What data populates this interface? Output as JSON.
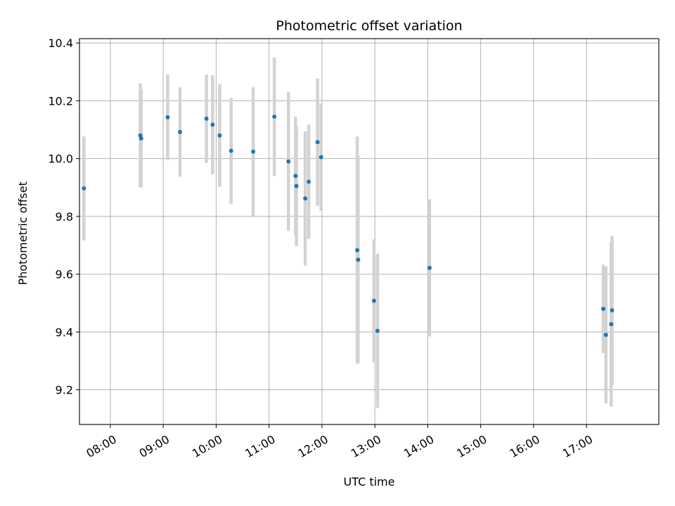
{
  "chart_data": {
    "type": "scatter",
    "title": "Photometric offset variation",
    "xlabel": "UTC time",
    "ylabel": "Photometric offset",
    "grid": true,
    "xlim": [
      "07:25",
      "18:22"
    ],
    "ylim": [
      9.08,
      10.415
    ],
    "x_ticks": [
      "08:00",
      "09:00",
      "10:00",
      "11:00",
      "12:00",
      "13:00",
      "14:00",
      "15:00",
      "16:00",
      "17:00"
    ],
    "y_ticks": [
      9.2,
      9.4,
      9.6,
      9.8,
      10.0,
      10.2,
      10.4
    ],
    "y_tick_labels": [
      "9.2",
      "9.4",
      "9.6",
      "9.8",
      "10.0",
      "10.2",
      "10.4"
    ],
    "marker_color": "#1f77b4",
    "errorbar_color": "#d3d3d3",
    "points": [
      {
        "t": "07:30",
        "y": 9.897,
        "err": 0.18
      },
      {
        "t": "08:34",
        "y": 10.08,
        "err": 0.18
      },
      {
        "t": "08:35",
        "y": 10.07,
        "err": 0.17
      },
      {
        "t": "09:05",
        "y": 10.143,
        "err": 0.148
      },
      {
        "t": "09:19",
        "y": 10.092,
        "err": 0.155
      },
      {
        "t": "09:49",
        "y": 10.138,
        "err": 0.153
      },
      {
        "t": "09:56",
        "y": 10.117,
        "err": 0.172
      },
      {
        "t": "10:04",
        "y": 10.08,
        "err": 0.178
      },
      {
        "t": "10:17",
        "y": 10.027,
        "err": 0.183
      },
      {
        "t": "10:42",
        "y": 10.024,
        "err": 0.223
      },
      {
        "t": "11:06",
        "y": 10.145,
        "err": 0.205
      },
      {
        "t": "11:22",
        "y": 9.99,
        "err": 0.24
      },
      {
        "t": "11:30",
        "y": 9.94,
        "err": 0.205
      },
      {
        "t": "11:31",
        "y": 9.905,
        "err": 0.208
      },
      {
        "t": "11:41",
        "y": 9.862,
        "err": 0.232
      },
      {
        "t": "11:45",
        "y": 9.92,
        "err": 0.198
      },
      {
        "t": "11:55",
        "y": 10.057,
        "err": 0.22
      },
      {
        "t": "11:59",
        "y": 10.005,
        "err": 0.186
      },
      {
        "t": "12:40",
        "y": 9.683,
        "err": 0.393
      },
      {
        "t": "12:41",
        "y": 9.65,
        "err": 0.357
      },
      {
        "t": "12:59",
        "y": 9.508,
        "err": 0.213
      },
      {
        "t": "13:03",
        "y": 9.404,
        "err": 0.267
      },
      {
        "t": "14:02",
        "y": 9.622,
        "err": 0.237
      },
      {
        "t": "17:19",
        "y": 9.48,
        "err": 0.153
      },
      {
        "t": "17:22",
        "y": 9.39,
        "err": 0.237
      },
      {
        "t": "17:28",
        "y": 9.427,
        "err": 0.285
      },
      {
        "t": "17:29",
        "y": 9.475,
        "err": 0.258
      }
    ]
  }
}
